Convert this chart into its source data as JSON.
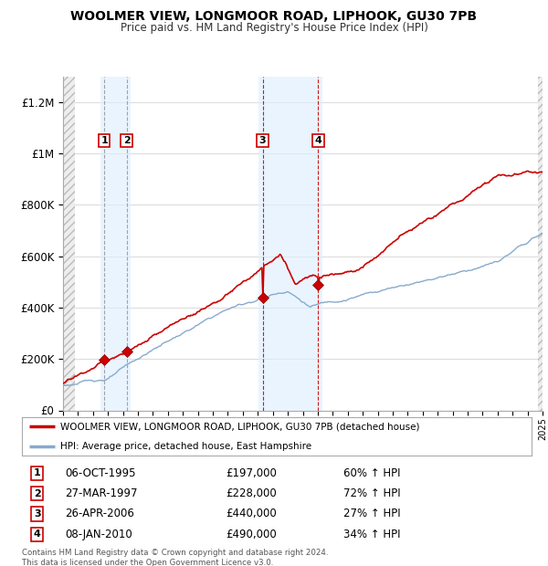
{
  "title": "WOOLMER VIEW, LONGMOOR ROAD, LIPHOOK, GU30 7PB",
  "subtitle": "Price paid vs. HM Land Registry's House Price Index (HPI)",
  "ylim": [
    0,
    1300000
  ],
  "yticks": [
    0,
    200000,
    400000,
    600000,
    800000,
    1000000,
    1200000
  ],
  "ytick_labels": [
    "£0",
    "£200K",
    "£400K",
    "£600K",
    "£800K",
    "£1M",
    "£1.2M"
  ],
  "x_start_year": 1993,
  "x_end_year": 2025,
  "transactions": [
    {
      "num": 1,
      "date": "06-OCT-1995",
      "price": 197000,
      "pct": "60%",
      "year": 1995.76
    },
    {
      "num": 2,
      "date": "27-MAR-1997",
      "price": 228000,
      "pct": "72%",
      "year": 1997.24
    },
    {
      "num": 3,
      "date": "26-APR-2006",
      "price": 440000,
      "pct": "27%",
      "year": 2006.32
    },
    {
      "num": 4,
      "date": "08-JAN-2010",
      "price": 490000,
      "pct": "34%",
      "year": 2010.03
    }
  ],
  "line_color_red": "#cc0000",
  "line_color_blue": "#88aacc",
  "shade_color": "#ddeeff",
  "grid_color": "#dddddd",
  "bg_color": "#ffffff",
  "legend_line1": "WOOLMER VIEW, LONGMOOR ROAD, LIPHOOK, GU30 7PB (detached house)",
  "legend_line2": "HPI: Average price, detached house, East Hampshire",
  "footer": "Contains HM Land Registry data © Crown copyright and database right 2024.\nThis data is licensed under the Open Government Licence v3.0."
}
